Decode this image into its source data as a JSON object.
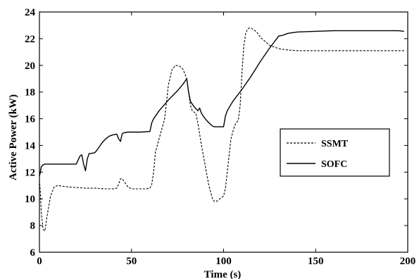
{
  "chart_data": {
    "type": "line",
    "title": "",
    "xlabel": "Time (s)",
    "ylabel": "Active Power (kW)",
    "xlim": [
      0,
      200
    ],
    "ylim": [
      6,
      24
    ],
    "xticks": [
      0,
      50,
      100,
      150,
      200
    ],
    "yticks": [
      6,
      8,
      10,
      12,
      14,
      16,
      18,
      20,
      22,
      24
    ],
    "grid": false,
    "legend_position": "center-right",
    "series": [
      {
        "name": "SSMT",
        "style": "dashed",
        "color": "#000000",
        "x": [
          0,
          0.5,
          1,
          2,
          3,
          4,
          6,
          8,
          10,
          15,
          20,
          25,
          30,
          35,
          40,
          42,
          43,
          44,
          45,
          46,
          47,
          48,
          50,
          55,
          58,
          60,
          61,
          62,
          63,
          65,
          68,
          70,
          72,
          74,
          76,
          78,
          80,
          82,
          83,
          85,
          86,
          88,
          90,
          92,
          94,
          95,
          96,
          98,
          100,
          101,
          102,
          104,
          106,
          108,
          109,
          110,
          111,
          112,
          113,
          114,
          115,
          116,
          118,
          120,
          125,
          130,
          135,
          140,
          150,
          160,
          170,
          180,
          190,
          198
        ],
        "y": [
          11.4,
          10.5,
          9.0,
          7.7,
          7.6,
          8.6,
          10.2,
          10.9,
          11.0,
          10.9,
          10.85,
          10.8,
          10.8,
          10.75,
          10.75,
          10.8,
          11.1,
          11.5,
          11.5,
          11.3,
          11.1,
          10.9,
          10.75,
          10.75,
          10.75,
          10.8,
          11.1,
          12.0,
          13.5,
          14.5,
          16.0,
          18.5,
          19.7,
          20.0,
          19.95,
          19.7,
          19.0,
          17.0,
          16.6,
          16.4,
          15.7,
          14.0,
          12.5,
          11.0,
          10.0,
          9.8,
          9.8,
          10.0,
          10.2,
          10.8,
          12.0,
          14.5,
          15.5,
          15.9,
          17.0,
          19.5,
          21.5,
          22.4,
          22.7,
          22.8,
          22.8,
          22.7,
          22.5,
          22.1,
          21.5,
          21.25,
          21.15,
          21.1,
          21.1,
          21.1,
          21.1,
          21.1,
          21.1,
          21.1
        ]
      },
      {
        "name": "SOFC",
        "style": "solid",
        "color": "#000000",
        "x": [
          0,
          0.5,
          1,
          2,
          3,
          5,
          10,
          15,
          20,
          22,
          23,
          24,
          25,
          26,
          27,
          28,
          30,
          31,
          32,
          34,
          36,
          38,
          40,
          42,
          43,
          44,
          45,
          46,
          48,
          50,
          55,
          60,
          61,
          62,
          65,
          70,
          75,
          78,
          80,
          81,
          82,
          84,
          86,
          87,
          88,
          90,
          92,
          94,
          95,
          97,
          98,
          100,
          101,
          102,
          105,
          110,
          115,
          120,
          125,
          130,
          132,
          135,
          140,
          150,
          160,
          170,
          180,
          190,
          195,
          198
        ],
        "y": [
          11.7,
          12.0,
          12.4,
          12.55,
          12.6,
          12.6,
          12.6,
          12.6,
          12.6,
          13.2,
          13.3,
          12.6,
          12.1,
          13.0,
          13.4,
          13.4,
          13.45,
          13.6,
          13.8,
          14.2,
          14.5,
          14.7,
          14.8,
          14.85,
          14.5,
          14.3,
          14.9,
          14.95,
          15.0,
          15.0,
          15.0,
          15.05,
          15.7,
          16.0,
          16.6,
          17.4,
          18.1,
          18.6,
          19.0,
          18.0,
          17.3,
          16.9,
          16.6,
          16.8,
          16.4,
          16.0,
          15.7,
          15.45,
          15.4,
          15.4,
          15.4,
          15.4,
          16.2,
          16.6,
          17.3,
          18.2,
          19.2,
          20.3,
          21.3,
          22.2,
          22.25,
          22.4,
          22.5,
          22.55,
          22.6,
          22.6,
          22.6,
          22.6,
          22.6,
          22.55
        ]
      }
    ]
  }
}
